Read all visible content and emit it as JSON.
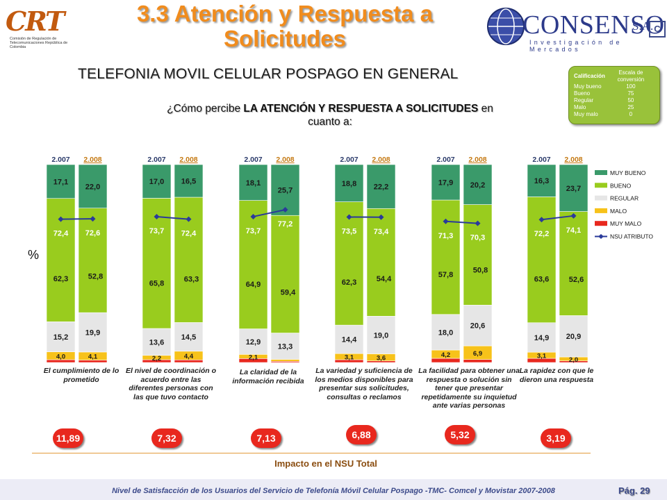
{
  "header": {
    "title_line1": "3.3 Atención y Respuesta a",
    "title_line2": "Solicitudes",
    "subtitle": "TELEFONIA MOVIL CELULAR POSPAGO EN GENERAL",
    "question_pre": "¿Cómo percibe ",
    "question_bold": "LA ATENCIÓN Y RESPUESTA A SOLICITUDES",
    "question_post": " en cuanto a:"
  },
  "logos": {
    "crt_text": "CRT",
    "crt_subtitle": "Comisión de Regulación de Telecomunicaciones República de Colombia",
    "consenso_name": "CONSENSO",
    "consenso_sa": "S.A.",
    "consenso_tagline": "Investigación de Mercados"
  },
  "scale_box": {
    "header_left": "Calificación",
    "header_right": "Escala de conversión",
    "rows": [
      {
        "label": "Muy bueno",
        "value": "100"
      },
      {
        "label": "Bueno",
        "value": "75"
      },
      {
        "label": "Regular",
        "value": "50"
      },
      {
        "label": "Malo",
        "value": "25"
      },
      {
        "label": "Muy malo",
        "value": "0"
      }
    ]
  },
  "percent_label": "%",
  "impact_label": "Impacto en el NSU Total",
  "footer": "Nivel de Satisfacción de los Usuarios del Servicio de Telefonía Móvil Celular Pospago -TMC- Comcel y Movistar 2007-2008",
  "page_number": "Pág. 29",
  "chart_data": {
    "type": "bar",
    "stacked": true,
    "ylim": [
      0,
      100
    ],
    "series_names": [
      "MUY BUENO",
      "BUENO",
      "REGULAR",
      "MALO",
      "MUY MALO"
    ],
    "line_series_name": "NSU ATRIBUTO",
    "colors": {
      "muy_bueno": "#3a9a6a",
      "bueno": "#99cc1e",
      "regular": "#e6e6e6",
      "malo": "#f7c21a",
      "muy_malo": "#e8281e",
      "nsu_line": "#2a3a9a",
      "impact_bubble": "#e8281e"
    },
    "groups": [
      {
        "category": "El cumplimiento de lo prometido",
        "impact": "11,89",
        "bars": [
          {
            "year": "2.007",
            "muy_bueno": 17.1,
            "bueno": 62.3,
            "regular": 15.2,
            "malo": 4.0,
            "muy_malo": 1.4,
            "nsu": 72.4,
            "labels": {
              "muy_bueno": "17,1",
              "bueno": "62,3",
              "regular": "15,2",
              "malo": "4,0",
              "nsu": "72,4"
            }
          },
          {
            "year": "2.008",
            "muy_bueno": 22.0,
            "bueno": 52.8,
            "regular": 19.9,
            "malo": 4.1,
            "muy_malo": 1.2,
            "nsu": 72.6,
            "labels": {
              "muy_bueno": "22,0",
              "bueno": "52,8",
              "regular": "19,9",
              "malo": "4,1",
              "nsu": "72,6"
            }
          }
        ]
      },
      {
        "category": "El nivel de coordinación o acuerdo entre las diferentes personas con las que tuvo contacto",
        "impact": "7,32",
        "bars": [
          {
            "year": "2.007",
            "muy_bueno": 17.0,
            "bueno": 65.8,
            "regular": 13.6,
            "malo": 2.2,
            "muy_malo": 1.4,
            "nsu": 73.7,
            "labels": {
              "muy_bueno": "17,0",
              "bueno": "65,8",
              "regular": "13,6",
              "malo": "2,2",
              "nsu": "73,7"
            }
          },
          {
            "year": "2.008",
            "muy_bueno": 16.5,
            "bueno": 63.3,
            "regular": 14.5,
            "malo": 4.4,
            "muy_malo": 1.3,
            "nsu": 72.4,
            "labels": {
              "muy_bueno": "16,5",
              "bueno": "63,3",
              "regular": "14,5",
              "malo": "4,4",
              "nsu": "72,4"
            }
          }
        ]
      },
      {
        "category": "La claridad de la información recibida",
        "impact": "7,13",
        "bars": [
          {
            "year": "2.007",
            "muy_bueno": 18.1,
            "bueno": 64.9,
            "regular": 12.9,
            "malo": 2.1,
            "muy_malo": 2.0,
            "nsu": 73.7,
            "labels": {
              "muy_bueno": "18,1",
              "bueno": "64,9",
              "regular": "12,9",
              "malo": "2,1",
              "nsu": "73,7"
            }
          },
          {
            "year": "2.008",
            "muy_bueno": 25.7,
            "bueno": 59.4,
            "regular": 13.3,
            "malo": 1.0,
            "muy_malo": 0.6,
            "nsu": 77.2,
            "labels": {
              "muy_bueno": "25,7",
              "bueno": "59,4",
              "regular": "13,3",
              "malo": "",
              "nsu": "77,2"
            }
          }
        ]
      },
      {
        "category": "La variedad y suficiencia de los medios disponibles para presentar sus solicitudes, consultas o reclamos",
        "impact": "6,88",
        "bars": [
          {
            "year": "2.007",
            "muy_bueno": 18.8,
            "bueno": 62.3,
            "regular": 14.4,
            "malo": 3.1,
            "muy_malo": 1.4,
            "nsu": 73.5,
            "labels": {
              "muy_bueno": "18,8",
              "bueno": "62,3",
              "regular": "14,4",
              "malo": "3,1",
              "nsu": "73,5"
            }
          },
          {
            "year": "2.008",
            "muy_bueno": 22.2,
            "bueno": 54.4,
            "regular": 19.0,
            "malo": 3.6,
            "muy_malo": 0.8,
            "nsu": 73.4,
            "labels": {
              "muy_bueno": "22,2",
              "bueno": "54,4",
              "regular": "19,0",
              "malo": "3,6",
              "nsu": "73,4"
            }
          }
        ]
      },
      {
        "category": "La facilidad para obtener una respuesta o solución sin tener que presentar repetidamente su inquietud ante varias personas",
        "impact": "5,32",
        "bars": [
          {
            "year": "2.007",
            "muy_bueno": 17.9,
            "bueno": 57.8,
            "regular": 18.0,
            "malo": 4.2,
            "muy_malo": 2.1,
            "nsu": 71.3,
            "labels": {
              "muy_bueno": "17,9",
              "bueno": "57,8",
              "regular": "18,0",
              "malo": "4,2",
              "nsu": "71,3"
            }
          },
          {
            "year": "2.008",
            "muy_bueno": 20.2,
            "bueno": 50.8,
            "regular": 20.6,
            "malo": 6.9,
            "muy_malo": 1.5,
            "nsu": 70.3,
            "labels": {
              "muy_bueno": "20,2",
              "bueno": "50,8",
              "regular": "20,6",
              "malo": "6,9",
              "nsu": "70,3"
            }
          }
        ]
      },
      {
        "category": "La rapidez con que le dieron una respuesta",
        "impact": "3,19",
        "bars": [
          {
            "year": "2.007",
            "muy_bueno": 16.3,
            "bueno": 63.6,
            "regular": 14.9,
            "malo": 3.1,
            "muy_malo": 2.1,
            "nsu": 72.2,
            "labels": {
              "muy_bueno": "16,3",
              "bueno": "63,6",
              "regular": "14,9",
              "malo": "3,1",
              "nsu": "72,2"
            }
          },
          {
            "year": "2.008",
            "muy_bueno": 23.7,
            "bueno": 52.6,
            "regular": 20.9,
            "malo": 2.0,
            "muy_malo": 0.8,
            "nsu": 74.1,
            "labels": {
              "muy_bueno": "23,7",
              "bueno": "52,6",
              "regular": "20,9",
              "malo": "2,0",
              "nsu": "74,1"
            }
          }
        ]
      }
    ]
  }
}
